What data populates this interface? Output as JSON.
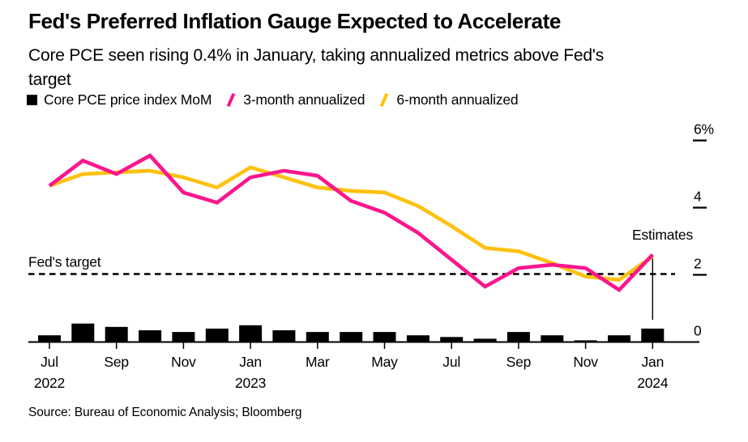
{
  "header": {
    "title": "Fed's Preferred Inflation Gauge Expected to Accelerate",
    "subtitle": "Core PCE seen rising 0.4% in January, taking annualized metrics above Fed's target",
    "subtitle_lines": [
      "Core PCE seen rising 0.4% in January, taking annualized metrics above Fed's",
      "target"
    ]
  },
  "legend": {
    "items": [
      {
        "label": "Core PCE price index MoM",
        "swatch": "black-square",
        "color": "#000000"
      },
      {
        "label": "3-month annualized",
        "swatch": "pink-slash",
        "color": "#fb168d"
      },
      {
        "label": "6-month annualized",
        "swatch": "yellow-slash",
        "color": "#fdc10e"
      }
    ]
  },
  "chart_data": {
    "type": "combo-bar-line",
    "title": "Fed's Preferred Inflation Gauge Expected to Accelerate",
    "categories": [
      "Jul 2022",
      "Aug 2022",
      "Sep 2022",
      "Oct 2022",
      "Nov 2022",
      "Dec 2022",
      "Jan 2023",
      "Feb 2023",
      "Mar 2023",
      "Apr 2023",
      "May 2023",
      "Jun 2023",
      "Jul 2023",
      "Aug 2023",
      "Sep 2023",
      "Oct 2023",
      "Nov 2023",
      "Dec 2023",
      "Jan 2024"
    ],
    "bar_series": {
      "name": "Core PCE price index MoM",
      "color": "#000000",
      "values": [
        0.2,
        0.55,
        0.45,
        0.35,
        0.3,
        0.4,
        0.5,
        0.35,
        0.3,
        0.3,
        0.3,
        0.2,
        0.15,
        0.1,
        0.3,
        0.2,
        0.05,
        0.2,
        0.4
      ]
    },
    "line_series": [
      {
        "name": "6-month annualized",
        "color": "#fdc10e",
        "values": [
          4.65,
          5.0,
          5.05,
          5.1,
          4.9,
          4.6,
          5.2,
          4.9,
          4.6,
          4.5,
          4.45,
          4.05,
          3.45,
          2.8,
          2.7,
          2.35,
          1.95,
          1.85,
          2.55
        ]
      },
      {
        "name": "3-month annualized",
        "color": "#fb168d",
        "values": [
          4.65,
          5.4,
          5.0,
          5.55,
          4.45,
          4.15,
          4.9,
          5.1,
          4.95,
          4.2,
          3.85,
          3.25,
          2.45,
          1.65,
          2.2,
          2.3,
          2.2,
          1.55,
          2.6
        ]
      }
    ],
    "ylim": [
      0,
      6
    ],
    "y_axis_position": "right",
    "grid": "off",
    "yticks": [
      {
        "value": 0,
        "label": "0"
      },
      {
        "value": 2,
        "label": "2"
      },
      {
        "value": 4,
        "label": "4"
      },
      {
        "value": 6,
        "label": "6%"
      }
    ],
    "xticks": [
      {
        "index": 0,
        "month": "Jul",
        "year": "2022"
      },
      {
        "index": 2,
        "month": "Sep"
      },
      {
        "index": 4,
        "month": "Nov"
      },
      {
        "index": 6,
        "month": "Jan",
        "year": "2023"
      },
      {
        "index": 8,
        "month": "Mar"
      },
      {
        "index": 10,
        "month": "May"
      },
      {
        "index": 12,
        "month": "Jul"
      },
      {
        "index": 14,
        "month": "Sep"
      },
      {
        "index": 16,
        "month": "Nov"
      },
      {
        "index": 18,
        "month": "Jan",
        "year": "2024"
      }
    ],
    "annotations": {
      "fed_target": {
        "label": "Fed's target",
        "value": 2
      },
      "estimates": {
        "label": "Estimates",
        "at_category": "Jan 2024"
      }
    }
  },
  "footer": {
    "source": "Source: Bureau of Economic Analysis; Bloomberg"
  }
}
